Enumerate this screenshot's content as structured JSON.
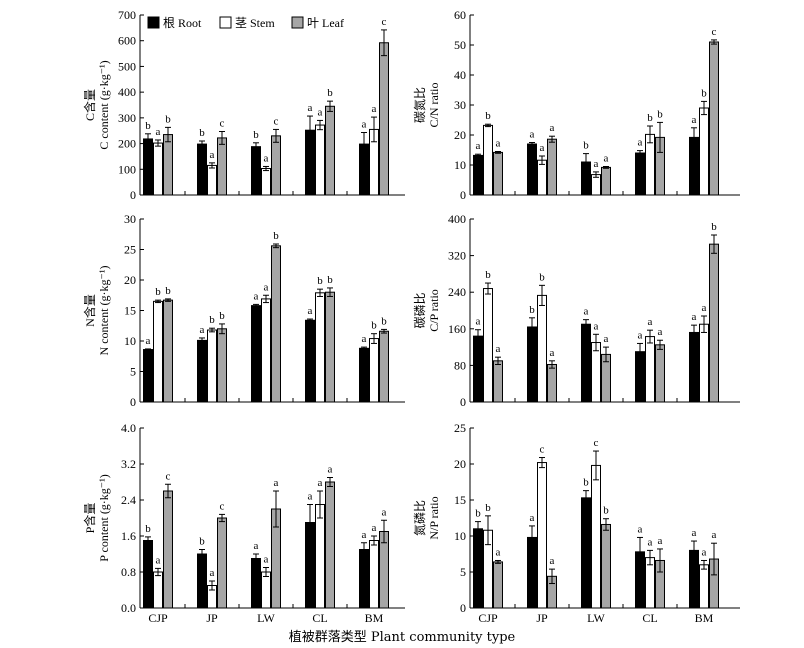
{
  "x_label": "植被群落类型 Plant community type",
  "legend": [
    {
      "label": "根 Root",
      "color": "#000000"
    },
    {
      "label": "茎 Stem",
      "color": "#ffffff"
    },
    {
      "label": "叶 Leaf",
      "color": "#a6a6a6"
    }
  ],
  "chart_data": [
    {
      "type": "bar",
      "panel": "C content",
      "ylabel_cn": "C含量",
      "ylabel_en": "C content (g·kg⁻¹)",
      "categories": [
        "CJP",
        "JP",
        "LW",
        "CL",
        "BM"
      ],
      "ylim": [
        0,
        700
      ],
      "yticks": [
        0,
        100,
        200,
        300,
        400,
        500,
        600,
        700
      ],
      "series": [
        {
          "name": "根 Root",
          "values": [
            218,
            198,
            188,
            252,
            198
          ],
          "errors": [
            20,
            12,
            15,
            55,
            45
          ],
          "letters": [
            "b",
            "b",
            "b",
            "a",
            "a"
          ]
        },
        {
          "name": "茎 Stem",
          "values": [
            202,
            115,
            103,
            272,
            255
          ],
          "errors": [
            12,
            10,
            8,
            18,
            48
          ],
          "letters": [
            "a",
            "a",
            "a",
            "a",
            "a"
          ]
        },
        {
          "name": "叶 Leaf",
          "values": [
            235,
            222,
            230,
            345,
            592
          ],
          "errors": [
            28,
            25,
            25,
            20,
            50
          ],
          "letters": [
            "b",
            "c",
            "c",
            "b",
            "c"
          ]
        }
      ]
    },
    {
      "type": "bar",
      "panel": "C/N ratio",
      "ylabel_cn": "碳氮比",
      "ylabel_en": "C/N ratio",
      "categories": [
        "CJP",
        "JP",
        "LW",
        "CL",
        "BM"
      ],
      "ylim": [
        0,
        60
      ],
      "yticks": [
        0,
        10,
        20,
        30,
        40,
        50,
        60
      ],
      "series": [
        {
          "name": "根 Root",
          "values": [
            13.2,
            17.0,
            11.0,
            14.0,
            19.2
          ],
          "errors": [
            0.4,
            0.5,
            2.8,
            0.8,
            3.2
          ],
          "letters": [
            "a",
            "a",
            "b",
            "a",
            "a"
          ]
        },
        {
          "name": "茎 Stem",
          "values": [
            23.2,
            11.6,
            6.8,
            20.2,
            29.0
          ],
          "errors": [
            0.4,
            1.4,
            0.9,
            2.8,
            2.2
          ],
          "letters": [
            "b",
            "a",
            "a",
            "b",
            "b"
          ]
        },
        {
          "name": "叶 Leaf",
          "values": [
            14.2,
            18.6,
            9.2,
            19.2,
            51.0
          ],
          "errors": [
            0.3,
            1.0,
            0.3,
            5.0,
            0.7
          ],
          "letters": [
            "a",
            "a",
            "a",
            "b",
            "c"
          ]
        }
      ]
    },
    {
      "type": "bar",
      "panel": "N content",
      "ylabel_cn": "N含量",
      "ylabel_en": "N content (g·kg⁻¹)",
      "categories": [
        "CJP",
        "JP",
        "LW",
        "CL",
        "BM"
      ],
      "ylim": [
        0,
        30
      ],
      "yticks": [
        0,
        5,
        10,
        15,
        20,
        25,
        30
      ],
      "series": [
        {
          "name": "根 Root",
          "values": [
            8.6,
            10.1,
            15.8,
            13.4,
            8.8
          ],
          "errors": [
            0.1,
            0.4,
            0.2,
            0.2,
            0.2
          ],
          "letters": [
            "a",
            "a",
            "a",
            "a",
            "a"
          ]
        },
        {
          "name": "茎 Stem",
          "values": [
            16.5,
            11.8,
            16.9,
            17.9,
            10.4
          ],
          "errors": [
            0.2,
            0.3,
            0.6,
            0.6,
            0.8
          ],
          "letters": [
            "b",
            "b",
            "a",
            "b",
            "b"
          ]
        },
        {
          "name": "叶 Leaf",
          "values": [
            16.7,
            12.0,
            25.6,
            18.0,
            11.6
          ],
          "errors": [
            0.2,
            0.8,
            0.3,
            0.7,
            0.3
          ],
          "letters": [
            "b",
            "b",
            "b",
            "b",
            "b"
          ]
        }
      ]
    },
    {
      "type": "bar",
      "panel": "C/P ratio",
      "ylabel_cn": "碳磷比",
      "ylabel_en": "C/P ratio",
      "categories": [
        "CJP",
        "JP",
        "LW",
        "CL",
        "BM"
      ],
      "ylim": [
        0,
        400
      ],
      "yticks": [
        0,
        80,
        160,
        240,
        320,
        400
      ],
      "series": [
        {
          "name": "根 Root",
          "values": [
            144,
            164,
            170,
            110,
            152
          ],
          "errors": [
            14,
            20,
            10,
            18,
            16
          ],
          "letters": [
            "a",
            "b",
            "a",
            "a",
            "a"
          ]
        },
        {
          "name": "茎 Stem",
          "values": [
            248,
            233,
            130,
            143,
            170
          ],
          "errors": [
            12,
            22,
            18,
            14,
            18
          ],
          "letters": [
            "b",
            "b",
            "a",
            "a",
            "a"
          ]
        },
        {
          "name": "叶 Leaf",
          "values": [
            90,
            82,
            104,
            125,
            345
          ],
          "errors": [
            8,
            8,
            16,
            10,
            20
          ],
          "letters": [
            "a",
            "a",
            "a",
            "a",
            "b"
          ]
        }
      ]
    },
    {
      "type": "bar",
      "panel": "P content",
      "ylabel_cn": "P含量",
      "ylabel_en": "P content (g·kg⁻¹)",
      "categories": [
        "CJP",
        "JP",
        "LW",
        "CL",
        "BM"
      ],
      "ylim": [
        0,
        4.0
      ],
      "yticks": [
        0,
        0.8,
        1.6,
        2.4,
        3.2,
        4.0
      ],
      "series": [
        {
          "name": "根 Root",
          "values": [
            1.5,
            1.2,
            1.1,
            1.9,
            1.3
          ],
          "errors": [
            0.08,
            0.1,
            0.1,
            0.4,
            0.15
          ],
          "letters": [
            "b",
            "b",
            "a",
            "a",
            "a"
          ]
        },
        {
          "name": "茎 Stem",
          "values": [
            0.8,
            0.5,
            0.8,
            2.3,
            1.5
          ],
          "errors": [
            0.08,
            0.1,
            0.1,
            0.3,
            0.1
          ],
          "letters": [
            "a",
            "a",
            "a",
            "a",
            "a"
          ]
        },
        {
          "name": "叶 Leaf",
          "values": [
            2.6,
            2.0,
            2.2,
            2.8,
            1.7
          ],
          "errors": [
            0.15,
            0.08,
            0.4,
            0.1,
            0.25
          ],
          "letters": [
            "c",
            "c",
            "a",
            "a",
            "a"
          ]
        }
      ]
    },
    {
      "type": "bar",
      "panel": "N/P ratio",
      "ylabel_cn": "氮磷比",
      "ylabel_en": "N/P ratio",
      "categories": [
        "CJP",
        "JP",
        "LW",
        "CL",
        "BM"
      ],
      "ylim": [
        0,
        25
      ],
      "yticks": [
        0,
        5,
        10,
        15,
        20,
        25
      ],
      "series": [
        {
          "name": "根 Root",
          "values": [
            11.0,
            9.8,
            15.3,
            7.8,
            8.0
          ],
          "errors": [
            1.0,
            1.6,
            1.0,
            2.0,
            1.3
          ],
          "letters": [
            "b",
            "a",
            "b",
            "a",
            "a"
          ]
        },
        {
          "name": "茎 Stem",
          "values": [
            10.8,
            20.2,
            19.8,
            7.0,
            6.0
          ],
          "errors": [
            2.0,
            0.7,
            2.0,
            1.0,
            0.6
          ],
          "letters": [
            "b",
            "c",
            "c",
            "a",
            "a"
          ]
        },
        {
          "name": "叶 Leaf",
          "values": [
            6.4,
            4.4,
            11.6,
            6.6,
            6.8
          ],
          "errors": [
            0.2,
            1.0,
            0.8,
            1.6,
            2.2
          ],
          "letters": [
            "a",
            "a",
            "b",
            "a",
            "a"
          ]
        }
      ]
    }
  ]
}
